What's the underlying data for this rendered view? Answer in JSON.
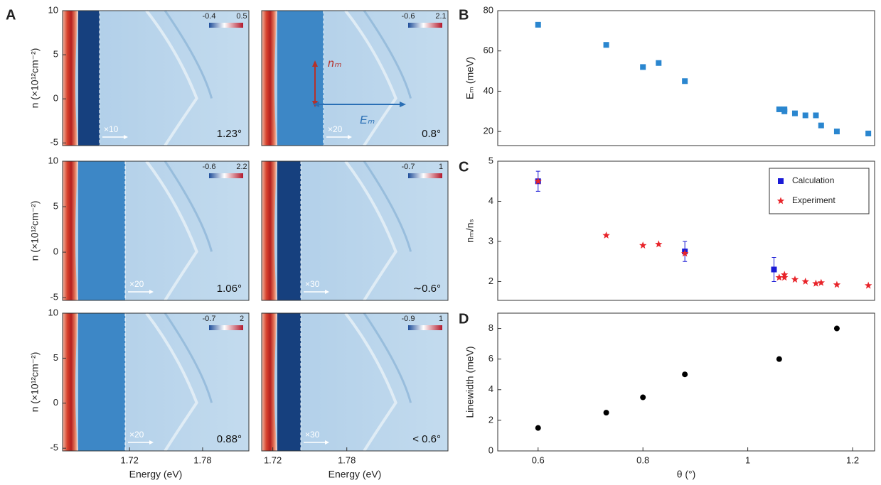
{
  "panel_labels": [
    "A",
    "B",
    "C",
    "D"
  ],
  "chart_data": [
    {
      "type": "heatmap",
      "ylim": [
        -5.3,
        10
      ],
      "yticks": [
        -5,
        0,
        5,
        10
      ],
      "ylabel": "n (×10¹²cm⁻²)",
      "clim": [
        -0.4,
        0.5
      ],
      "scale": "×10",
      "angle": "1.23°"
    },
    {
      "type": "heatmap",
      "clim": [
        -0.6,
        2.1
      ],
      "scale": "×20",
      "angle": "0.8°",
      "annotations": [
        "nₘ",
        "Eₘ"
      ]
    },
    {
      "type": "heatmap",
      "ylim": [
        -5.3,
        10
      ],
      "yticks": [
        -5,
        0,
        5,
        10
      ],
      "ylabel": "n (×10¹²cm⁻²)",
      "clim": [
        -0.6,
        2.2
      ],
      "scale": "×20",
      "angle": "1.06°"
    },
    {
      "type": "heatmap",
      "clim": [
        -0.7,
        1
      ],
      "scale": "×30",
      "angle": "∼0.6°"
    },
    {
      "type": "heatmap",
      "ylim": [
        -5.3,
        10
      ],
      "yticks": [
        -5,
        0,
        5,
        10
      ],
      "ylabel": "n (×10¹²cm⁻²)",
      "xlim": [
        1.665,
        1.818
      ],
      "xticks": [
        1.72,
        1.78
      ],
      "xlabel": "Energy (eV)",
      "clim": [
        -0.7,
        2
      ],
      "scale": "×20",
      "angle": "0.88°"
    },
    {
      "type": "heatmap",
      "xlim": [
        1.711,
        1.862
      ],
      "xticks": [
        1.72,
        1.78
      ],
      "xlabel": "Energy (eV)",
      "clim": [
        -0.9,
        1
      ],
      "scale": "×30",
      "angle": "< 0.6°"
    },
    {
      "type": "scatter",
      "ylabel": "Eₘ (meV)",
      "xlim": [
        0.523,
        1.242
      ],
      "ylim": [
        13,
        80
      ],
      "yticks": [
        20,
        40,
        60,
        80
      ],
      "series": [
        {
          "color": "#2a86cf",
          "marker": "square",
          "x": [
            0.6,
            0.73,
            0.8,
            0.83,
            0.88,
            1.06,
            1.07,
            1.07,
            1.09,
            1.11,
            1.13,
            1.14,
            1.17,
            1.23
          ],
          "values": [
            73,
            63,
            52,
            54,
            45,
            31,
            31,
            30,
            29,
            28,
            28,
            23,
            20,
            19
          ]
        }
      ]
    },
    {
      "type": "scatter",
      "ylabel": "nₘ/nₛ",
      "xlim": [
        0.523,
        1.242
      ],
      "ylim": [
        1.53,
        5
      ],
      "yticks": [
        2,
        3,
        4,
        5
      ],
      "legend": "upper right",
      "series": [
        {
          "name": "Calculation",
          "color": "#1a1ad6",
          "marker": "square",
          "x": [
            0.6,
            0.88,
            1.05
          ],
          "values": [
            4.5,
            2.75,
            2.3
          ],
          "errors": [
            0.25,
            0.25,
            0.3
          ]
        },
        {
          "name": "Experiment",
          "color": "#e8242a",
          "marker": "star",
          "x": [
            0.6,
            0.73,
            0.8,
            0.83,
            0.88,
            1.06,
            1.07,
            1.07,
            1.09,
            1.11,
            1.13,
            1.14,
            1.17,
            1.23
          ],
          "values": [
            4.5,
            3.15,
            2.9,
            2.93,
            2.7,
            2.1,
            2.1,
            2.17,
            2.05,
            2.0,
            1.95,
            1.97,
            1.92,
            1.9
          ]
        }
      ]
    },
    {
      "type": "scatter",
      "ylabel": "Linewidth (meV)",
      "xlabel": "θ (°)",
      "xlim": [
        0.523,
        1.242
      ],
      "xticks": [
        0.6,
        0.8,
        1,
        1.2
      ],
      "ylim": [
        0,
        9
      ],
      "yticks": [
        0,
        2,
        4,
        6,
        8
      ],
      "series": [
        {
          "color": "#000000",
          "marker": "circle",
          "x": [
            0.6,
            0.73,
            0.8,
            0.88,
            1.06,
            1.17
          ],
          "values": [
            1.5,
            2.5,
            3.5,
            5,
            6,
            8
          ]
        }
      ]
    }
  ]
}
